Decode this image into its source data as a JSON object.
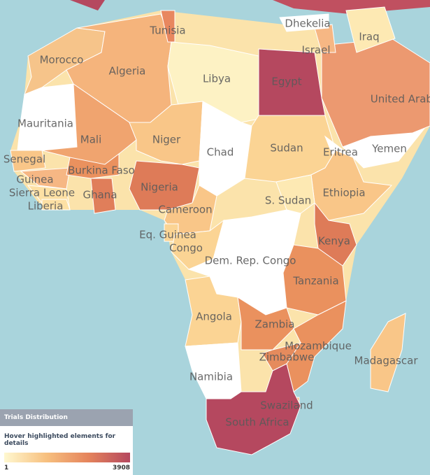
{
  "map": {
    "regions": [
      {
        "label": "Morocco",
        "color": "#f6c48a"
      },
      {
        "label": "Algeria",
        "color": "#f5b47c"
      },
      {
        "label": "Tunisia",
        "color": "#e8875f"
      },
      {
        "label": "Libya",
        "color": "#fdf2c4"
      },
      {
        "label": "Egypt",
        "color": "#b5485f"
      },
      {
        "label": "Mauritania",
        "color": "#ffffff"
      },
      {
        "label": "Mali",
        "color": "#f0a46f"
      },
      {
        "label": "Niger",
        "color": "#f9c688"
      },
      {
        "label": "Chad",
        "color": "#ffffff"
      },
      {
        "label": "Sudan",
        "color": "#fbd494"
      },
      {
        "label": "Eritrea",
        "color": "#ffffff"
      },
      {
        "label": "Ethiopia",
        "color": "#f9c688"
      },
      {
        "label": "Yemen",
        "color": "#ffffff"
      },
      {
        "label": "United Arab Emirates",
        "color": "#ec9970"
      },
      {
        "label": "Iraq",
        "color": "#fde9b3"
      },
      {
        "label": "Israel",
        "color": "#f6b784"
      },
      {
        "label": "Dhekelia",
        "color": "#ffffff"
      },
      {
        "label": "Senegal",
        "color": "#f9c688"
      },
      {
        "label": "Guinea",
        "color": "#f6b784"
      },
      {
        "label": "Sierra Leone",
        "color": "#fde0a4"
      },
      {
        "label": "Liberia",
        "color": "#fde0a4"
      },
      {
        "label": "Burkina Faso",
        "color": "#ea915e"
      },
      {
        "label": "Ghana",
        "color": "#e07e5a"
      },
      {
        "label": "Nigeria",
        "color": "#de7b58"
      },
      {
        "label": "Cameroon",
        "color": "#f9c688"
      },
      {
        "label": "S. Sudan",
        "color": "#fde9b3"
      },
      {
        "label": "Eq. Guinea",
        "color": "#fbd494"
      },
      {
        "label": "Congo",
        "color": "#fbd494"
      },
      {
        "label": "Dem. Rep. Congo",
        "color": "#ffffff"
      },
      {
        "label": "Kenya",
        "color": "#de7b58"
      },
      {
        "label": "Tanzania",
        "color": "#ea915e"
      },
      {
        "label": "Angola",
        "color": "#fbd494"
      },
      {
        "label": "Zambia",
        "color": "#ea915e"
      },
      {
        "label": "Mozambique",
        "color": "#ea915e"
      },
      {
        "label": "Zimbabwe",
        "color": "#e58b5d"
      },
      {
        "label": "Namibia",
        "color": "#ffffff"
      },
      {
        "label": "Swaziland",
        "color": "#f6b784"
      },
      {
        "label": "South Africa",
        "color": "#b5485f"
      },
      {
        "label": "Madagascar",
        "color": "#f9c688"
      }
    ]
  },
  "legend": {
    "title": "Trials Distribution",
    "subtitle": "Hover highlighted elements for details",
    "min": 1,
    "max": 3908,
    "colors": [
      "#fff8d0",
      "#f7c07f",
      "#e5845c",
      "#b5485f"
    ]
  }
}
